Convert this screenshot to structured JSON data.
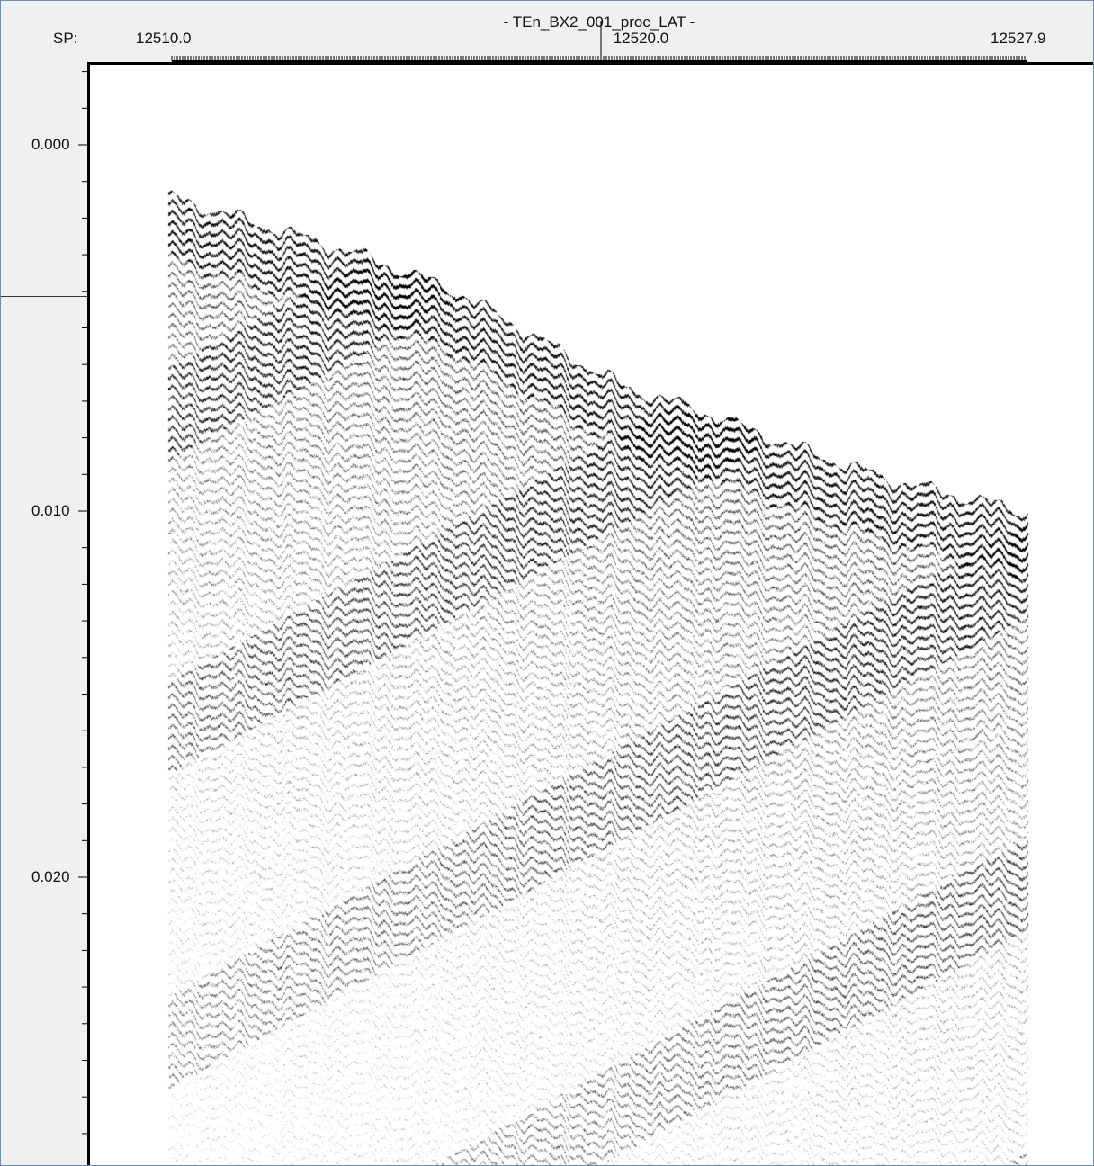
{
  "header": {
    "title": "- TEn_BX2_001_proc_LAT -",
    "axis_label": "SP:"
  },
  "chart_data": {
    "type": "heatmap",
    "title": "- TEn_BX2_001_proc_LAT -",
    "x_axis": {
      "label": "SP:",
      "ticks": [
        {
          "value": 12510.0,
          "label": "12510.0"
        },
        {
          "value": 12520.0,
          "label": "12520.0"
        },
        {
          "value": 12527.9,
          "label": "12527.9"
        }
      ],
      "range": [
        12510.0,
        12527.9
      ]
    },
    "y_axis": {
      "label": "",
      "ticks": [
        {
          "value": 0.0,
          "label": "0.000"
        },
        {
          "value": 0.01,
          "label": "0.010"
        },
        {
          "value": 0.02,
          "label": "0.020"
        }
      ],
      "range": [
        -0.0035,
        0.0275
      ],
      "reversed": true
    },
    "seafloor": {
      "sp": [
        12510.0,
        12512.0,
        12514.0,
        12516.0,
        12518.0,
        12519.5,
        12521.0,
        12523.0,
        12525.0,
        12527.9
      ],
      "time": [
        0.0014,
        0.0022,
        0.003,
        0.004,
        0.0055,
        0.0066,
        0.0072,
        0.0082,
        0.0091,
        0.01
      ]
    },
    "colors": {
      "trace": "#000000",
      "background": "#ffffff"
    }
  }
}
